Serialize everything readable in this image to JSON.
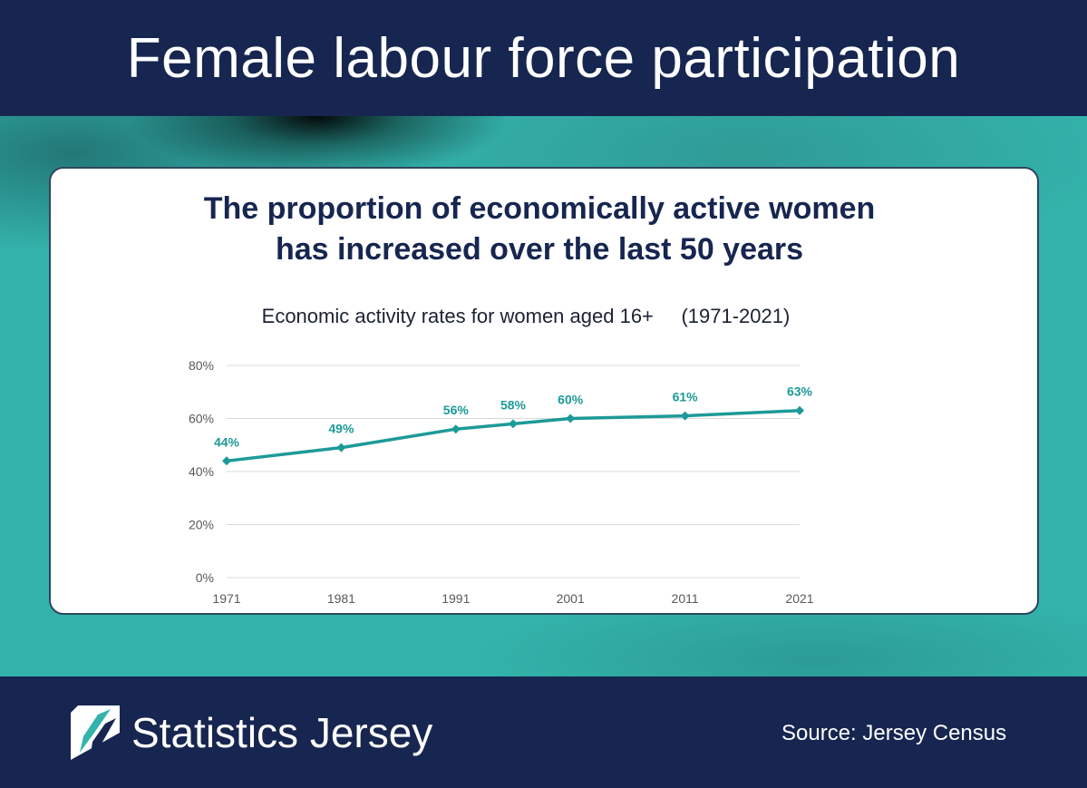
{
  "header": {
    "title": "Female labour force participation"
  },
  "headline": {
    "line1": "The proportion of economically active women",
    "line2": "has increased over the last 50 years"
  },
  "chart_data": {
    "type": "line",
    "title": "Economic activity rates for women aged 16+     (1971-2021)",
    "xlabel": "",
    "ylabel": "",
    "x": [
      1971,
      1981,
      1991,
      1996,
      2001,
      2011,
      2021
    ],
    "series": [
      {
        "name": "Economic activity rate (women 16+)",
        "values": [
          44,
          49,
          56,
          58,
          60,
          61,
          63
        ],
        "data_labels": [
          "44%",
          "49%",
          "56%",
          "58%",
          "60%",
          "61%",
          "63%"
        ]
      }
    ],
    "x_tick_labels": [
      "1971",
      "1981",
      "1991",
      "2001",
      "2011",
      "2021"
    ],
    "x_tick_values": [
      1971,
      1981,
      1991,
      2001,
      2011,
      2021
    ],
    "y_tick_labels": [
      "0%",
      "20%",
      "40%",
      "60%",
      "80%"
    ],
    "y_tick_values": [
      0,
      20,
      40,
      60,
      80
    ],
    "xlim": [
      1971,
      2021
    ],
    "ylim": [
      0,
      80
    ],
    "grid": true,
    "legend": "none"
  },
  "colors": {
    "series": "#1d9a98",
    "header_bg": "#172650",
    "teal_bg": "#33b3ab",
    "gridline": "#d9d9d9",
    "axis_text": "#595959"
  },
  "footer": {
    "brand": "Statistics Jersey",
    "source": "Source: Jersey Census",
    "logo_icon": "statistics-jersey-logo-icon"
  }
}
